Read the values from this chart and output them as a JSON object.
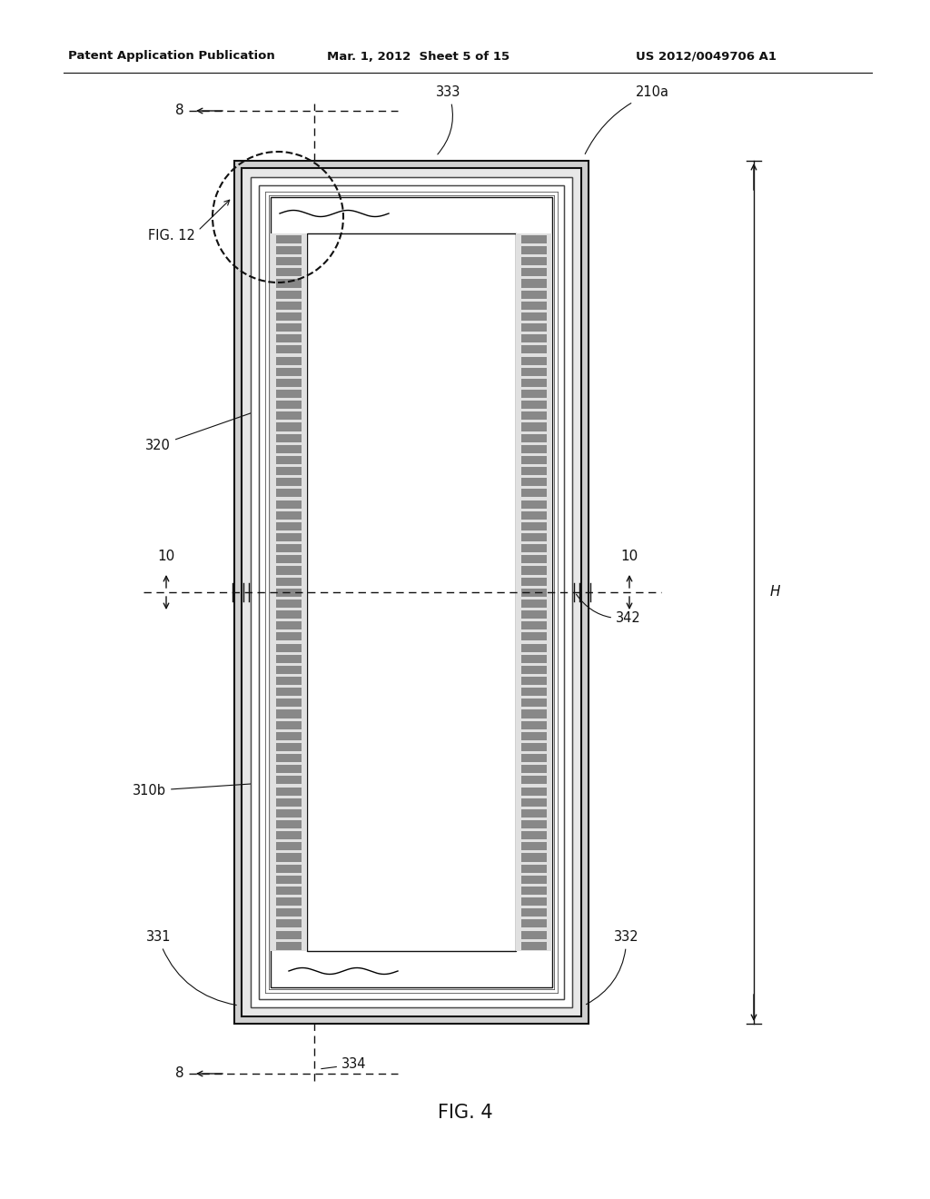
{
  "bg_color": "#ffffff",
  "header_text1": "Patent Application Publication",
  "header_text2": "Mar. 1, 2012  Sheet 5 of 15",
  "header_text3": "US 2012/0049706 A1",
  "fig_label": "FIG. 4",
  "dark": "#111111",
  "gray_light": "#cccccc",
  "gray_mid": "#aaaaaa",
  "strip_gray": "#999999"
}
